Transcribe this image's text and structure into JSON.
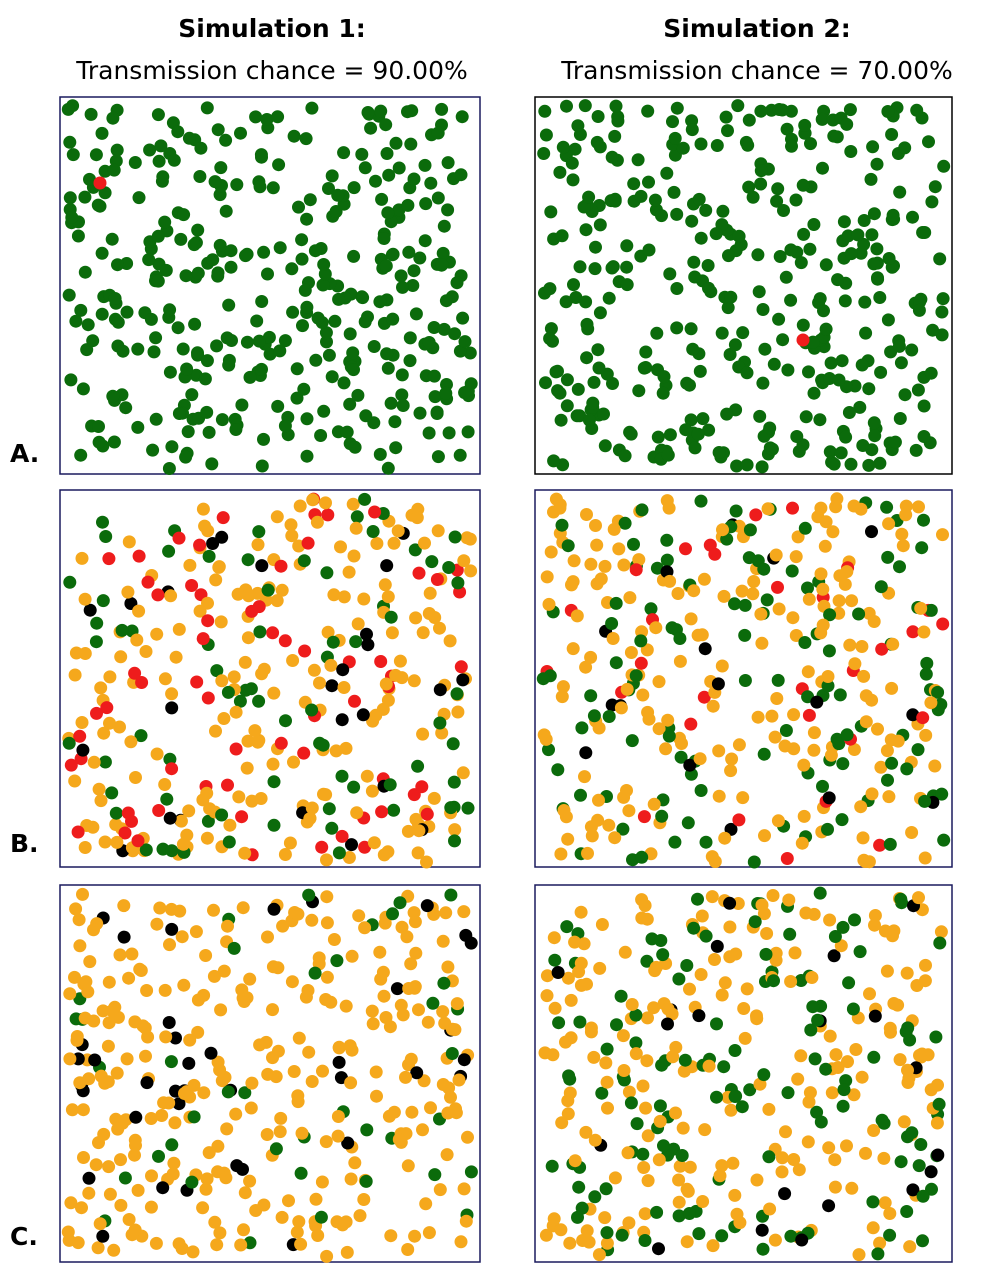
{
  "columns": [
    {
      "title": "Simulation 1:",
      "subtitle": "Transmission chance = 90.00%"
    },
    {
      "title": "Simulation 2:",
      "subtitle": "Transmission chance = 70.00%"
    }
  ],
  "rows": [
    "A.",
    "B.",
    "C."
  ]
}
